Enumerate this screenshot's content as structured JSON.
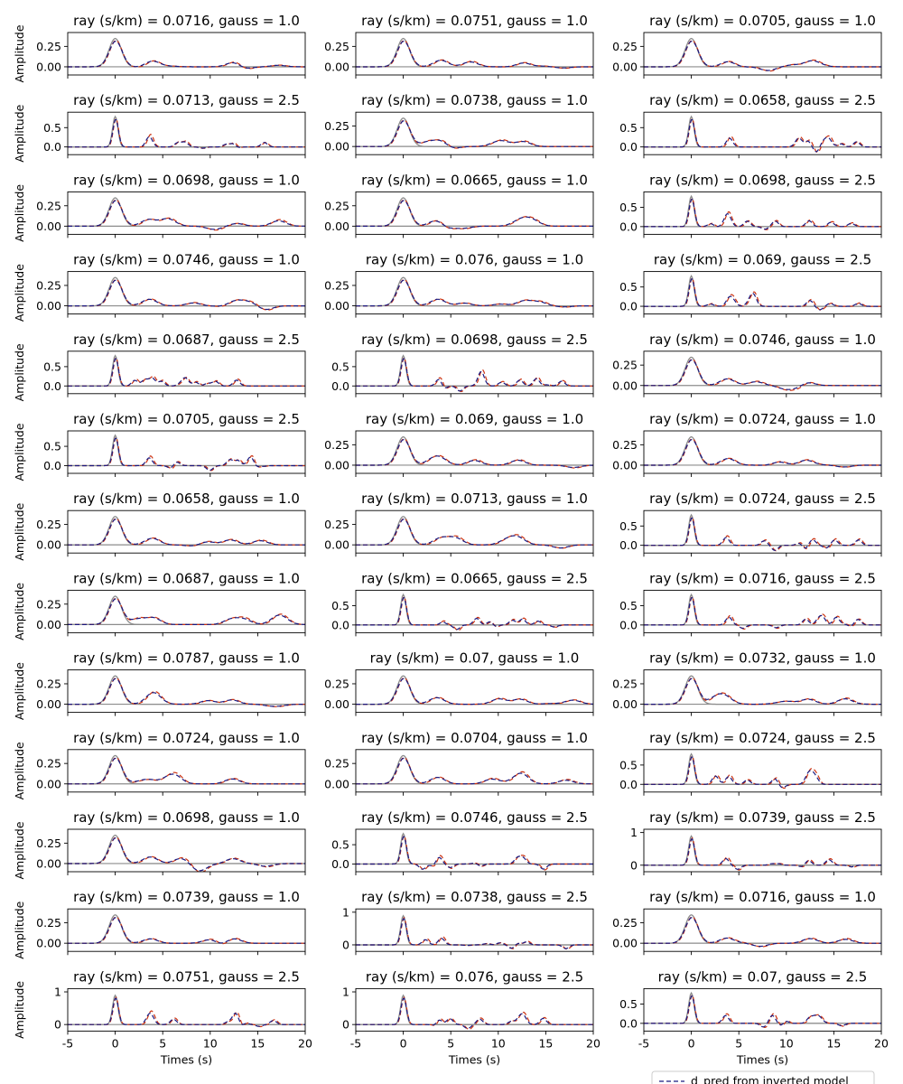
{
  "chart_data": {
    "type": "line",
    "layout": {
      "rows": 13,
      "cols": 3
    },
    "xlabel": "Times (s)",
    "ylabel": "Amplitude",
    "xlim": [
      -5,
      20
    ],
    "xticks": [
      -5,
      0,
      5,
      10,
      15,
      20
    ],
    "legend": {
      "position": "bottom-right",
      "entries": [
        "d_pred from inverted model"
      ]
    },
    "series_colors": {
      "observed": "#8c8c8c",
      "predicted": "#1a1a80",
      "secondary": "#cc3311"
    },
    "panels": [
      {
        "title": "ray (s/km) = 0.0716, gauss = 1.0",
        "ylim": [
          -0.1,
          0.42
        ],
        "yticks": [
          "0.00",
          "0.25"
        ]
      },
      {
        "title": "ray (s/km) = 0.0751, gauss = 1.0",
        "ylim": [
          -0.1,
          0.42
        ],
        "yticks": [
          "0.00",
          "0.25"
        ]
      },
      {
        "title": "ray (s/km) = 0.0705, gauss = 1.0",
        "ylim": [
          -0.1,
          0.42
        ],
        "yticks": [
          "0.00",
          "0.25"
        ]
      },
      {
        "title": "ray (s/km) = 0.0713, gauss = 2.5",
        "ylim": [
          -0.2,
          0.9
        ],
        "yticks": [
          "0.0",
          "0.5"
        ]
      },
      {
        "title": "ray (s/km) = 0.0738, gauss = 1.0",
        "ylim": [
          -0.1,
          0.42
        ],
        "yticks": [
          "0.00",
          "0.25"
        ]
      },
      {
        "title": "ray (s/km) = 0.0658, gauss = 2.5",
        "ylim": [
          -0.2,
          0.9
        ],
        "yticks": [
          "0.0",
          "0.5"
        ]
      },
      {
        "title": "ray (s/km) = 0.0698, gauss = 1.0",
        "ylim": [
          -0.1,
          0.42
        ],
        "yticks": [
          "0.00",
          "0.25"
        ]
      },
      {
        "title": "ray (s/km) = 0.0665, gauss = 1.0",
        "ylim": [
          -0.1,
          0.42
        ],
        "yticks": [
          "0.00",
          "0.25"
        ]
      },
      {
        "title": "ray (s/km) = 0.0698, gauss = 2.5",
        "ylim": [
          -0.2,
          0.9
        ],
        "yticks": [
          "0.0",
          "0.5"
        ]
      },
      {
        "title": "ray (s/km) = 0.0746, gauss = 1.0",
        "ylim": [
          -0.1,
          0.42
        ],
        "yticks": [
          "0.00",
          "0.25"
        ]
      },
      {
        "title": "ray (s/km) = 0.076, gauss = 1.0",
        "ylim": [
          -0.1,
          0.42
        ],
        "yticks": [
          "0.00",
          "0.25"
        ]
      },
      {
        "title": "ray (s/km) = 0.069, gauss = 2.5",
        "ylim": [
          -0.2,
          0.9
        ],
        "yticks": [
          "0.0",
          "0.5"
        ]
      },
      {
        "title": "ray (s/km) = 0.0687, gauss = 2.5",
        "ylim": [
          -0.2,
          0.9
        ],
        "yticks": [
          "0.0",
          "0.5"
        ]
      },
      {
        "title": "ray (s/km) = 0.0698, gauss = 2.5",
        "ylim": [
          -0.2,
          0.9
        ],
        "yticks": [
          "0.0",
          "0.5"
        ]
      },
      {
        "title": "ray (s/km) = 0.0746, gauss = 1.0",
        "ylim": [
          -0.1,
          0.42
        ],
        "yticks": [
          "0.00",
          "0.25"
        ]
      },
      {
        "title": "ray (s/km) = 0.0705, gauss = 2.5",
        "ylim": [
          -0.2,
          0.9
        ],
        "yticks": [
          "0.0",
          "0.5"
        ]
      },
      {
        "title": "ray (s/km) = 0.069, gauss = 1.0",
        "ylim": [
          -0.1,
          0.42
        ],
        "yticks": [
          "0.00",
          "0.25"
        ]
      },
      {
        "title": "ray (s/km) = 0.0724, gauss = 1.0",
        "ylim": [
          -0.1,
          0.42
        ],
        "yticks": [
          "0.00",
          "0.25"
        ]
      },
      {
        "title": "ray (s/km) = 0.0658, gauss = 1.0",
        "ylim": [
          -0.1,
          0.42
        ],
        "yticks": [
          "0.00",
          "0.25"
        ]
      },
      {
        "title": "ray (s/km) = 0.0713, gauss = 1.0",
        "ylim": [
          -0.1,
          0.42
        ],
        "yticks": [
          "0.00",
          "0.25"
        ]
      },
      {
        "title": "ray (s/km) = 0.0724, gauss = 2.5",
        "ylim": [
          -0.2,
          0.9
        ],
        "yticks": [
          "0.0",
          "0.5"
        ]
      },
      {
        "title": "ray (s/km) = 0.0687, gauss = 1.0",
        "ylim": [
          -0.1,
          0.42
        ],
        "yticks": [
          "0.00",
          "0.25"
        ]
      },
      {
        "title": "ray (s/km) = 0.0665, gauss = 2.5",
        "ylim": [
          -0.2,
          0.9
        ],
        "yticks": [
          "0.0",
          "0.5"
        ]
      },
      {
        "title": "ray (s/km) = 0.0716, gauss = 2.5",
        "ylim": [
          -0.2,
          0.9
        ],
        "yticks": [
          "0.0",
          "0.5"
        ]
      },
      {
        "title": "ray (s/km) = 0.0787, gauss = 1.0",
        "ylim": [
          -0.1,
          0.42
        ],
        "yticks": [
          "0.00",
          "0.25"
        ]
      },
      {
        "title": "ray (s/km) = 0.07, gauss = 1.0",
        "ylim": [
          -0.1,
          0.42
        ],
        "yticks": [
          "0.00",
          "0.25"
        ]
      },
      {
        "title": "ray (s/km) = 0.0732, gauss = 1.0",
        "ylim": [
          -0.1,
          0.42
        ],
        "yticks": [
          "0.00",
          "0.25"
        ]
      },
      {
        "title": "ray (s/km) = 0.0724, gauss = 1.0",
        "ylim": [
          -0.1,
          0.42
        ],
        "yticks": [
          "0.00",
          "0.25"
        ]
      },
      {
        "title": "ray (s/km) = 0.0704, gauss = 1.0",
        "ylim": [
          -0.1,
          0.42
        ],
        "yticks": [
          "0.00",
          "0.25"
        ]
      },
      {
        "title": "ray (s/km) = 0.0724, gauss = 2.5",
        "ylim": [
          -0.2,
          0.9
        ],
        "yticks": [
          "0.0",
          "0.5"
        ]
      },
      {
        "title": "ray (s/km) = 0.0698, gauss = 1.0",
        "ylim": [
          -0.1,
          0.42
        ],
        "yticks": [
          "0.00",
          "0.25"
        ]
      },
      {
        "title": "ray (s/km) = 0.0746, gauss = 2.5",
        "ylim": [
          -0.2,
          0.9
        ],
        "yticks": [
          "0.0",
          "0.5"
        ]
      },
      {
        "title": "ray (s/km) = 0.0739, gauss = 2.5",
        "ylim": [
          -0.2,
          1.1
        ],
        "yticks": [
          "0",
          "1"
        ]
      },
      {
        "title": "ray (s/km) = 0.0739, gauss = 1.0",
        "ylim": [
          -0.1,
          0.42
        ],
        "yticks": [
          "0.00",
          "0.25"
        ]
      },
      {
        "title": "ray (s/km) = 0.0738, gauss = 2.5",
        "ylim": [
          -0.2,
          1.1
        ],
        "yticks": [
          "0",
          "1"
        ]
      },
      {
        "title": "ray (s/km) = 0.0716, gauss = 1.0",
        "ylim": [
          -0.1,
          0.42
        ],
        "yticks": [
          "0.00",
          "0.25"
        ]
      },
      {
        "title": "ray (s/km) = 0.0751, gauss = 2.5",
        "ylim": [
          -0.2,
          1.1
        ],
        "yticks": [
          "0",
          "1"
        ]
      },
      {
        "title": "ray (s/km) = 0.076, gauss = 2.5",
        "ylim": [
          -0.2,
          1.1
        ],
        "yticks": [
          "0",
          "1"
        ]
      },
      {
        "title": "ray (s/km) = 0.07, gauss = 2.5",
        "ylim": [
          -0.2,
          0.9
        ],
        "yticks": [
          "0.0",
          "0.5"
        ]
      }
    ]
  }
}
